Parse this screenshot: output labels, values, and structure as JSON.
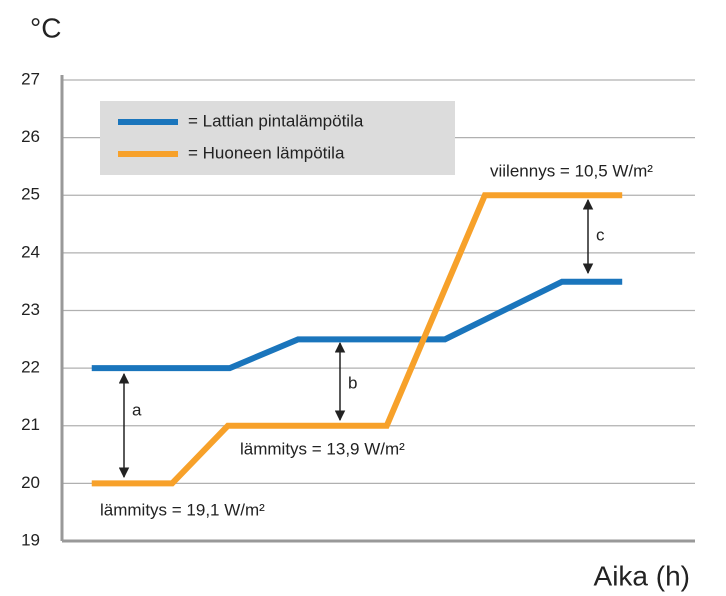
{
  "chart_data": {
    "type": "line",
    "title": "°C",
    "x_label": "Aika (h)",
    "xlim": [
      0,
      100
    ],
    "ylim": [
      19,
      27
    ],
    "yticks": [
      19,
      20,
      21,
      22,
      23,
      24,
      25,
      26,
      27
    ],
    "grid": true,
    "legend": "upper left",
    "series": [
      {
        "name": "= Lattian pintalämpötila",
        "color": "#1a75bc",
        "x": [
          4.7,
          26.5,
          37.3,
          60.5,
          79,
          88.5
        ],
        "values": [
          22,
          22,
          22.5,
          22.5,
          23.5,
          23.5
        ]
      },
      {
        "name": "= Huoneen lämpötila",
        "color": "#f7a12a",
        "x": [
          4.7,
          17.4,
          26.2,
          51.3,
          66.8,
          88.5
        ],
        "values": [
          20,
          20,
          21,
          21,
          25,
          25
        ]
      }
    ],
    "annotations": [
      "a",
      "b",
      "c",
      "lämmitys = 19,1 W/m²",
      "lämmitys = 13,9 W/m²",
      "viilennys = 10,5 W/m²"
    ]
  }
}
